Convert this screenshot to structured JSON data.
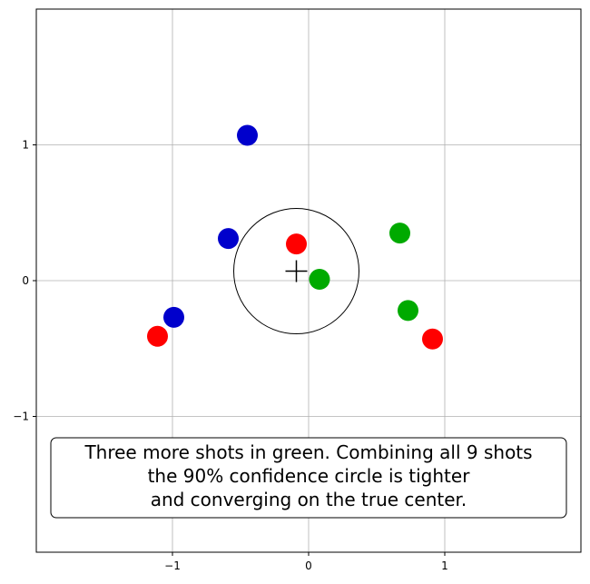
{
  "chart_data": {
    "type": "scatter",
    "xlim": [
      -2,
      2
    ],
    "ylim": [
      -2,
      2
    ],
    "grid": true,
    "x_ticks": [
      -1,
      0,
      1
    ],
    "y_ticks": [
      -1,
      0,
      1
    ],
    "x_tick_labels": [
      "−1",
      "0",
      "1"
    ],
    "y_tick_labels": [
      "−1",
      "0",
      "1"
    ],
    "series": [
      {
        "color": "#0000cc",
        "points": [
          [
            -0.45,
            1.07
          ],
          [
            -0.59,
            0.31
          ],
          [
            -0.99,
            -0.27
          ]
        ]
      },
      {
        "color": "#ff0000",
        "points": [
          [
            -0.09,
            0.27
          ],
          [
            -1.11,
            -0.41
          ],
          [
            0.91,
            -0.43
          ]
        ]
      },
      {
        "color": "#00aa00",
        "points": [
          [
            0.67,
            0.35
          ],
          [
            0.08,
            0.01
          ],
          [
            0.73,
            -0.22
          ]
        ]
      }
    ],
    "confidence_circle": {
      "center": [
        -0.09,
        0.07
      ],
      "radius": 0.46,
      "color": "#000000"
    },
    "center_marker": {
      "position": [
        -0.09,
        0.07
      ],
      "symbol": "plus"
    },
    "annotation": [
      "Three more shots in green.  Combining all 9 shots",
      "the 90% confidence circle is tighter",
      "and converging on the true center."
    ]
  }
}
